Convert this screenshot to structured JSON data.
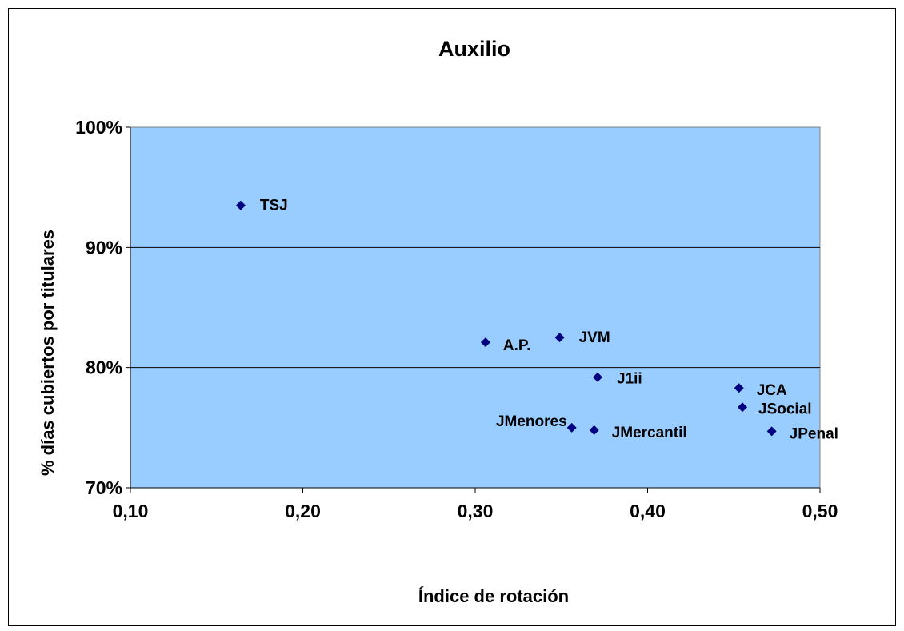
{
  "chart_data": {
    "type": "scatter",
    "title": "Auxilio",
    "xlabel": "Índice de rotación",
    "ylabel": "% días cubiertos por titulares",
    "xlim": [
      0.1,
      0.5
    ],
    "ylim": [
      0.7,
      1.0
    ],
    "x_ticks": [
      "0,10",
      "0,20",
      "0,30",
      "0,40",
      "0,50"
    ],
    "y_ticks": [
      "70%",
      "80%",
      "90%",
      "100%"
    ],
    "grid": "horizontal",
    "legend": "none",
    "colors": {
      "plot_background": "#99CCFF",
      "marker": "#000080"
    },
    "points": [
      {
        "label": "TSJ",
        "x": 0.164,
        "y": 0.935
      },
      {
        "label": "A.P.",
        "x": 0.306,
        "y": 0.821
      },
      {
        "label": "JVM",
        "x": 0.349,
        "y": 0.825
      },
      {
        "label": "J1ii",
        "x": 0.371,
        "y": 0.792
      },
      {
        "label": "JCA",
        "x": 0.453,
        "y": 0.783
      },
      {
        "label": "JSocial",
        "x": 0.455,
        "y": 0.767
      },
      {
        "label": "JMenores",
        "x": 0.356,
        "y": 0.75
      },
      {
        "label": "JMercantil",
        "x": 0.369,
        "y": 0.748
      },
      {
        "label": "JPenal",
        "x": 0.472,
        "y": 0.747
      }
    ]
  }
}
